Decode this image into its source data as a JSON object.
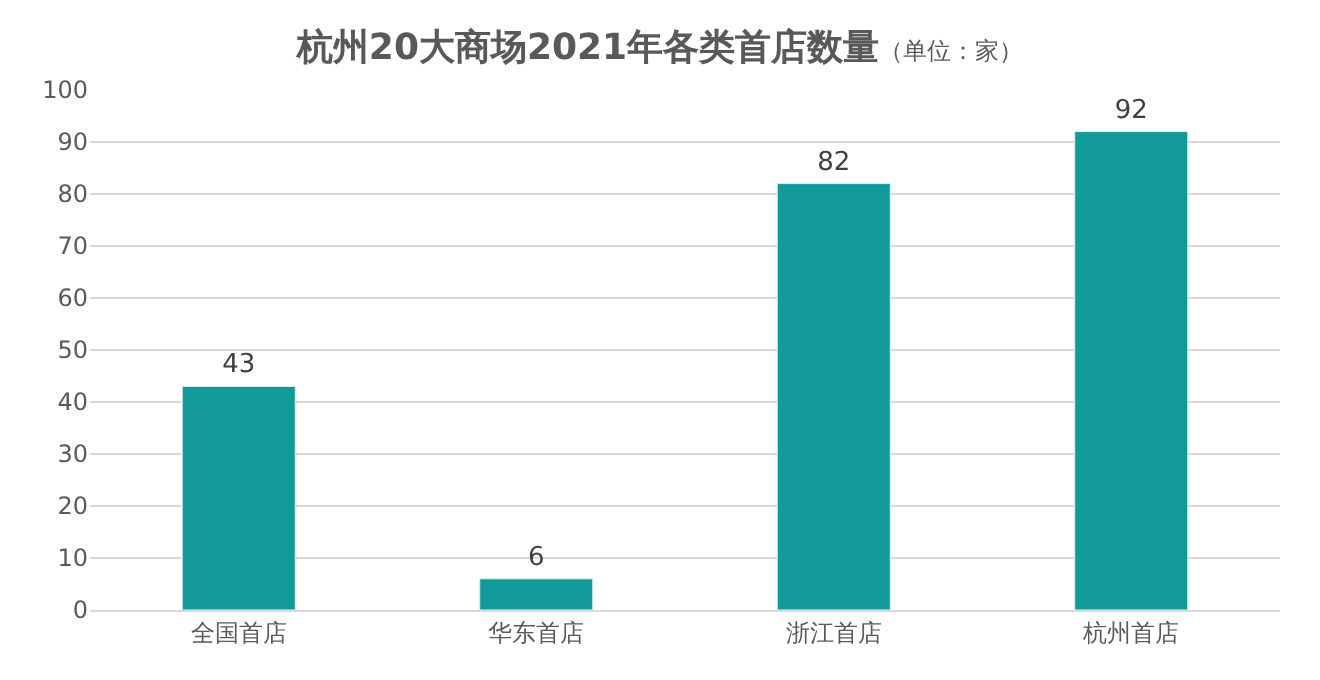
{
  "chart_data": {
    "type": "bar",
    "title": "杭州20大商场2021年各类首店数量",
    "subtitle": "（单位：家）",
    "categories": [
      "全国首店",
      "华东首店",
      "浙江首店",
      "杭州首店"
    ],
    "values": [
      43,
      6,
      82,
      92
    ],
    "color": "#12999a",
    "ylim": [
      0,
      100
    ],
    "yticks": [
      0,
      10,
      20,
      30,
      40,
      50,
      60,
      70,
      80,
      90,
      100
    ],
    "grid": "y",
    "data_labels": true
  }
}
